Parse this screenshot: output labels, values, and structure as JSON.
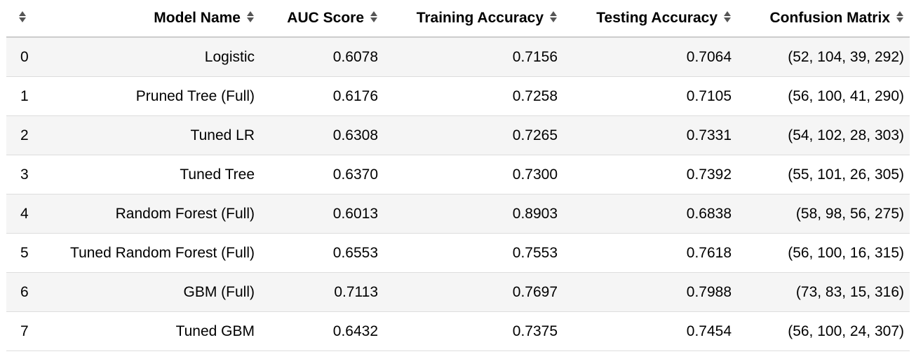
{
  "table": {
    "columns": [
      "Model Name",
      "AUC Score",
      "Training Accuracy",
      "Testing Accuracy",
      "Confusion Matrix"
    ],
    "rows": [
      {
        "index": "0",
        "model": "Logistic",
        "auc": "0.6078",
        "train": "0.7156",
        "test": "0.7064",
        "cm": "(52, 104, 39, 292)"
      },
      {
        "index": "1",
        "model": "Pruned Tree (Full)",
        "auc": "0.6176",
        "train": "0.7258",
        "test": "0.7105",
        "cm": "(56, 100, 41, 290)"
      },
      {
        "index": "2",
        "model": "Tuned LR",
        "auc": "0.6308",
        "train": "0.7265",
        "test": "0.7331",
        "cm": "(54, 102, 28, 303)"
      },
      {
        "index": "3",
        "model": "Tuned Tree",
        "auc": "0.6370",
        "train": "0.7300",
        "test": "0.7392",
        "cm": "(55, 101, 26, 305)"
      },
      {
        "index": "4",
        "model": "Random Forest (Full)",
        "auc": "0.6013",
        "train": "0.8903",
        "test": "0.6838",
        "cm": "(58, 98, 56, 275)"
      },
      {
        "index": "5",
        "model": "Tuned Random Forest (Full)",
        "auc": "0.6553",
        "train": "0.7553",
        "test": "0.7618",
        "cm": "(56, 100, 16, 315)"
      },
      {
        "index": "6",
        "model": "GBM (Full)",
        "auc": "0.7113",
        "train": "0.7697",
        "test": "0.7988",
        "cm": "(73, 83, 15, 316)"
      },
      {
        "index": "7",
        "model": "Tuned GBM",
        "auc": "0.6432",
        "train": "0.7375",
        "test": "0.7454",
        "cm": "(56, 100, 24, 307)"
      }
    ]
  }
}
